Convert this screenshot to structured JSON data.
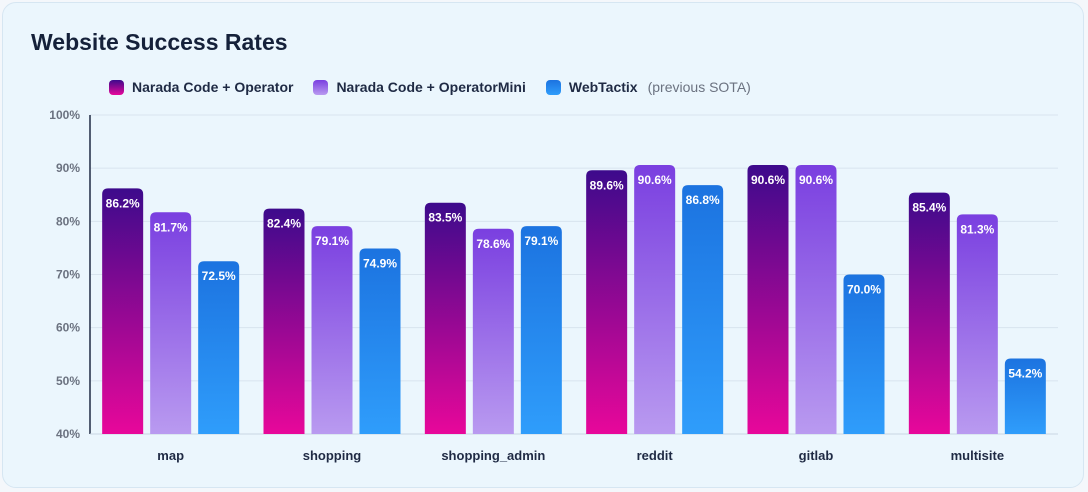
{
  "chart_data": {
    "type": "bar",
    "title": "Website Success Rates",
    "categories": [
      "map",
      "shopping",
      "shopping_admin",
      "reddit",
      "gitlab",
      "multisite"
    ],
    "series": [
      {
        "name": "Narada Code + Operator",
        "values": [
          86.2,
          82.4,
          83.5,
          89.6,
          90.6,
          85.4
        ],
        "color_top": "#3d0a8c",
        "color_bottom": "#e8079a"
      },
      {
        "name": "Narada Code + OperatorMini",
        "values": [
          81.7,
          79.1,
          78.6,
          90.6,
          90.6,
          81.3
        ],
        "color_top": "#7a3fe0",
        "color_bottom": "#b99af0"
      },
      {
        "name": "WebTactix",
        "note": "(previous SOTA)",
        "values": [
          72.5,
          74.9,
          79.1,
          86.8,
          70.0,
          54.2
        ],
        "color_top": "#1c73e0",
        "color_bottom": "#2f9dfb"
      }
    ],
    "yticks": [
      "40%",
      "50%",
      "60%",
      "70%",
      "80%",
      "90%",
      "100%"
    ],
    "ylim": [
      40,
      100
    ],
    "grid": true,
    "legend_position": "top-left"
  }
}
